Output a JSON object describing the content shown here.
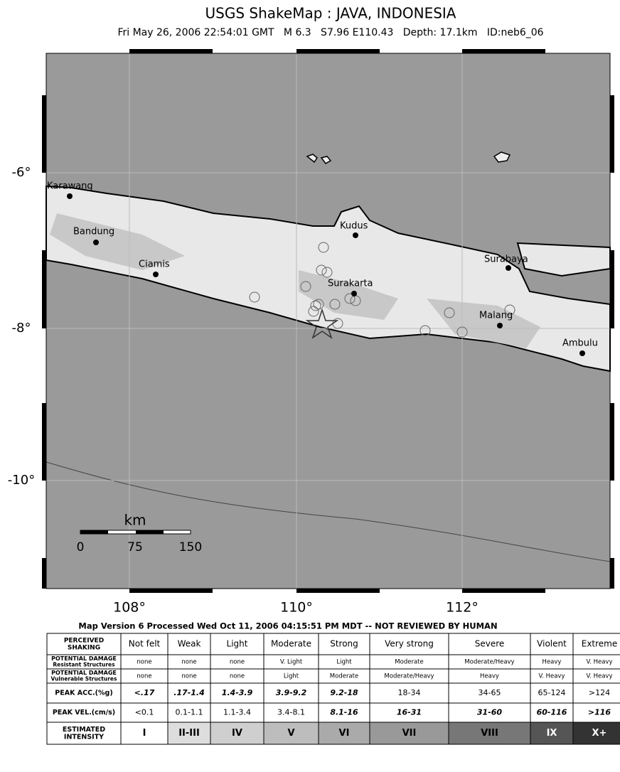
{
  "header": {
    "title": "USGS ShakeMap : JAVA, INDONESIA",
    "subtitle": "Fri May 26, 2006 22:54:01 GMT   M 6.3   S7.96 E110.43   Depth: 17.1km   ID:neb6_06"
  },
  "map": {
    "lat_labels": [
      "-6°",
      "-8°",
      "-10°"
    ],
    "lon_labels": [
      "108°",
      "110°",
      "112°"
    ],
    "cities": [
      "Karawang",
      "Bandung",
      "Ciamis",
      "Kudus",
      "Surakarta",
      "Surabaya",
      "Malang",
      "Ambulu"
    ],
    "scale": {
      "unit": "km",
      "labels": [
        "0",
        "75",
        "150"
      ]
    }
  },
  "footer": "Map Version 6 Processed Wed Oct 11, 2006 04:15:51 PM MDT -- NOT REVIEWED BY HUMAN",
  "table": {
    "rows": [
      {
        "label": [
          "PERCEIVED",
          "SHAKING"
        ],
        "cells": [
          "Not felt",
          "Weak",
          "Light",
          "Moderate",
          "Strong",
          "Very strong",
          "Severe",
          "Violent",
          "Extreme"
        ]
      },
      {
        "label": [
          "POTENTIAL DAMAGE",
          "Resistant Structures"
        ],
        "cells": [
          "none",
          "none",
          "none",
          "V. Light",
          "Light",
          "Moderate",
          "Moderate/Heavy",
          "Heavy",
          "V. Heavy"
        ]
      },
      {
        "label": [
          "POTENTIAL DAMAGE",
          "Vulnerable Structures"
        ],
        "cells": [
          "none",
          "none",
          "none",
          "Light",
          "Moderate",
          "Moderate/Heavy",
          "Heavy",
          "V. Heavy",
          "V. Heavy"
        ]
      },
      {
        "label": [
          "PEAK ACC.(%g)"
        ],
        "cells": [
          "<.17",
          ".17-1.4",
          "1.4-3.9",
          "3.9-9.2",
          "9.2-18",
          "18-34",
          "34-65",
          "65-124",
          ">124"
        ]
      },
      {
        "label": [
          "PEAK VEL.(cm/s)"
        ],
        "cells": [
          "<0.1",
          "0.1-1.1",
          "1.1-3.4",
          "3.4-8.1",
          "8.1-16",
          "16-31",
          "31-60",
          "60-116",
          ">116"
        ]
      },
      {
        "label": [
          "ESTIMATED",
          "INTENSITY"
        ],
        "cells": [
          "I",
          "II-III",
          "IV",
          "V",
          "VI",
          "VII",
          "VIII",
          "IX",
          "X+"
        ]
      }
    ]
  }
}
